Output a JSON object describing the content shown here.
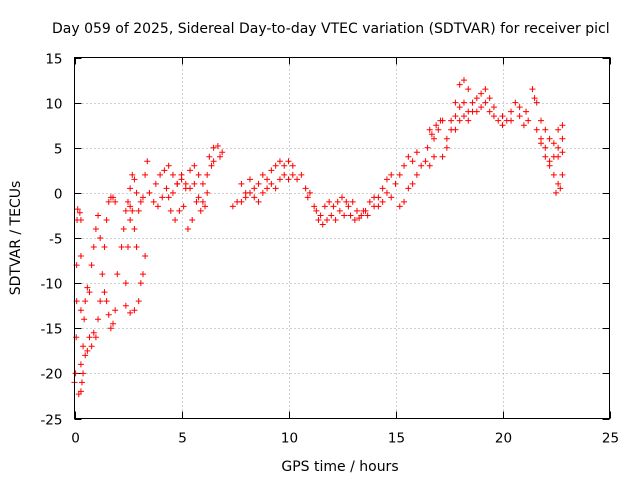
{
  "chart_data": {
    "type": "scatter",
    "title": "Day 059 of 2025, Sidereal Day-to-day VTEC variation (SDTVAR) for receiver picl",
    "xlabel": "GPS time / hours",
    "ylabel": "SDTVAR / TECUs",
    "xlim": [
      0,
      25
    ],
    "ylim": [
      -25,
      15
    ],
    "xticks": [
      0,
      5,
      10,
      15,
      20,
      25
    ],
    "yticks": [
      -25,
      -20,
      -15,
      -10,
      -5,
      0,
      5,
      10,
      15
    ],
    "xtick_labels": [
      "0",
      "5",
      "10",
      "15",
      "20",
      "25"
    ],
    "ytick_labels": [
      "-25",
      "-20",
      "-15",
      "-10",
      "-5",
      "0",
      "5",
      "10",
      "15"
    ],
    "grid": true,
    "legend": false,
    "marker": "plus",
    "color": "#ff0000",
    "series": [
      {
        "name": "SDTVAR",
        "points": [
          [
            0.0,
            -21.0
          ],
          [
            0.05,
            -20.0
          ],
          [
            0.08,
            -16.0
          ],
          [
            0.1,
            -12.0
          ],
          [
            0.1,
            -8.0
          ],
          [
            0.12,
            -3.0
          ],
          [
            0.15,
            -1.8
          ],
          [
            0.25,
            -2.2
          ],
          [
            0.3,
            -3.0
          ],
          [
            0.3,
            -7.0
          ],
          [
            0.3,
            -13.0
          ],
          [
            0.3,
            -19.0
          ],
          [
            0.3,
            -22.0
          ],
          [
            0.2,
            -22.3
          ],
          [
            0.35,
            -21.0
          ],
          [
            0.4,
            -17.0
          ],
          [
            0.45,
            -14.0
          ],
          [
            0.5,
            -12.0
          ],
          [
            0.6,
            -10.5
          ],
          [
            0.7,
            -11.0
          ],
          [
            0.8,
            -8.0
          ],
          [
            0.9,
            -6.0
          ],
          [
            1.0,
            -4.0
          ],
          [
            1.1,
            -2.5
          ],
          [
            1.2,
            -5.0
          ],
          [
            0.4,
            -20.0
          ],
          [
            0.5,
            -18.0
          ],
          [
            0.6,
            -17.5
          ],
          [
            0.7,
            -16.0
          ],
          [
            0.8,
            -17.0
          ],
          [
            0.9,
            -15.5
          ],
          [
            1.0,
            -16.0
          ],
          [
            1.1,
            -14.0
          ],
          [
            1.2,
            -12.0
          ],
          [
            1.3,
            -9.0
          ],
          [
            1.4,
            -6.0
          ],
          [
            1.5,
            -3.0
          ],
          [
            1.6,
            -1.0
          ],
          [
            1.7,
            -0.5
          ],
          [
            1.8,
            -0.5
          ],
          [
            1.9,
            -1.0
          ],
          [
            1.4,
            -11.0
          ],
          [
            1.5,
            -12.0
          ],
          [
            1.6,
            -13.5
          ],
          [
            1.7,
            -15.0
          ],
          [
            1.8,
            -14.5
          ],
          [
            1.9,
            -13.0
          ],
          [
            2.0,
            -9.0
          ],
          [
            2.4,
            -10.0
          ],
          [
            2.5,
            -6.0
          ],
          [
            2.6,
            -3.0
          ],
          [
            2.6,
            -1.5
          ],
          [
            2.7,
            -2.0
          ],
          [
            2.8,
            -4.0
          ],
          [
            2.9,
            -6.0
          ],
          [
            2.4,
            -12.5
          ],
          [
            2.6,
            -13.3
          ],
          [
            2.8,
            -13.0
          ],
          [
            3.0,
            -12.0
          ],
          [
            3.1,
            -10.0
          ],
          [
            3.2,
            -9.0
          ],
          [
            3.3,
            -7.0
          ],
          [
            2.2,
            -6.0
          ],
          [
            2.3,
            -4.0
          ],
          [
            2.4,
            -2.0
          ],
          [
            2.5,
            -1.0
          ],
          [
            2.6,
            0.5
          ],
          [
            2.7,
            2.0
          ],
          [
            2.8,
            1.5
          ],
          [
            2.9,
            0.0
          ],
          [
            3.0,
            -2.0
          ],
          [
            3.1,
            -1.0
          ],
          [
            3.2,
            -0.5
          ],
          [
            3.3,
            2.0
          ],
          [
            3.4,
            3.5
          ],
          [
            3.5,
            0.0
          ],
          [
            3.7,
            -1.0
          ],
          [
            3.9,
            -1.5
          ],
          [
            4.1,
            -0.5
          ],
          [
            4.3,
            0.5
          ],
          [
            4.5,
            -2.0
          ],
          [
            4.7,
            -3.0
          ],
          [
            4.9,
            -2.0
          ],
          [
            5.1,
            -1.5
          ],
          [
            5.3,
            -4.0
          ],
          [
            5.5,
            -3.0
          ],
          [
            5.7,
            -1.0
          ],
          [
            5.9,
            -2.0
          ],
          [
            6.1,
            -1.5
          ],
          [
            3.8,
            1.0
          ],
          [
            4.0,
            2.0
          ],
          [
            4.2,
            2.5
          ],
          [
            4.4,
            3.0
          ],
          [
            4.6,
            2.0
          ],
          [
            4.8,
            1.0
          ],
          [
            5.0,
            1.5
          ],
          [
            5.2,
            0.5
          ],
          [
            5.4,
            2.5
          ],
          [
            5.6,
            3.0
          ],
          [
            5.8,
            2.0
          ],
          [
            6.0,
            1.0
          ],
          [
            6.2,
            2.0
          ],
          [
            6.4,
            3.0
          ],
          [
            4.4,
            -0.5
          ],
          [
            4.6,
            0.0
          ],
          [
            4.8,
            1.0
          ],
          [
            5.0,
            2.0
          ],
          [
            5.2,
            1.0
          ],
          [
            5.4,
            0.5
          ],
          [
            5.6,
            1.0
          ],
          [
            5.8,
            -0.5
          ],
          [
            6.0,
            -1.0
          ],
          [
            6.2,
            0.0
          ],
          [
            6.3,
            4.0
          ],
          [
            6.5,
            5.0
          ],
          [
            6.7,
            5.2
          ],
          [
            6.9,
            4.5
          ],
          [
            6.5,
            3.5
          ],
          [
            6.8,
            4.0
          ],
          [
            7.4,
            -1.5
          ],
          [
            7.6,
            -1.0
          ],
          [
            7.8,
            1.0
          ],
          [
            8.0,
            0.0
          ],
          [
            8.2,
            1.5
          ],
          [
            8.4,
            0.5
          ],
          [
            8.6,
            1.0
          ],
          [
            8.8,
            2.0
          ],
          [
            9.0,
            1.5
          ],
          [
            9.2,
            2.5
          ],
          [
            9.4,
            3.0
          ],
          [
            9.6,
            3.5
          ],
          [
            9.8,
            3.0
          ],
          [
            10.0,
            3.5
          ],
          [
            10.2,
            3.0
          ],
          [
            7.8,
            -1.0
          ],
          [
            8.0,
            -0.5
          ],
          [
            8.2,
            0.0
          ],
          [
            8.4,
            -0.5
          ],
          [
            8.6,
            -1.0
          ],
          [
            8.8,
            0.0
          ],
          [
            9.0,
            0.5
          ],
          [
            9.2,
            1.0
          ],
          [
            9.4,
            0.5
          ],
          [
            9.6,
            1.5
          ],
          [
            9.8,
            2.0
          ],
          [
            10.0,
            1.5
          ],
          [
            10.2,
            2.0
          ],
          [
            10.4,
            1.5
          ],
          [
            10.6,
            2.0
          ],
          [
            10.8,
            0.5
          ],
          [
            10.9,
            -0.5
          ],
          [
            11.0,
            0.0
          ],
          [
            11.2,
            -1.5
          ],
          [
            11.4,
            -3.0
          ],
          [
            11.6,
            -3.5
          ],
          [
            11.8,
            -3.0
          ],
          [
            12.0,
            -2.5
          ],
          [
            12.2,
            -3.0
          ],
          [
            12.4,
            -2.0
          ],
          [
            12.6,
            -2.5
          ],
          [
            12.8,
            -1.5
          ],
          [
            13.0,
            -1.0
          ],
          [
            13.2,
            -2.0
          ],
          [
            13.4,
            -2.5
          ],
          [
            13.6,
            -2.0
          ],
          [
            11.3,
            -2.0
          ],
          [
            11.5,
            -2.5
          ],
          [
            11.7,
            -1.5
          ],
          [
            11.9,
            -1.0
          ],
          [
            12.1,
            -1.5
          ],
          [
            12.3,
            -1.0
          ],
          [
            12.5,
            -0.5
          ],
          [
            12.7,
            -1.0
          ],
          [
            12.9,
            -2.5
          ],
          [
            13.1,
            -3.0
          ],
          [
            13.3,
            -2.8
          ],
          [
            13.5,
            -2.0
          ],
          [
            13.7,
            -2.5
          ],
          [
            13.8,
            -1.0
          ],
          [
            14.0,
            -0.5
          ],
          [
            14.2,
            -1.5
          ],
          [
            14.4,
            -1.0
          ],
          [
            14.6,
            0.0
          ],
          [
            14.8,
            -0.5
          ],
          [
            14.0,
            -1.5
          ],
          [
            14.2,
            -0.5
          ],
          [
            14.4,
            0.5
          ],
          [
            14.6,
            1.5
          ],
          [
            14.8,
            2.0
          ],
          [
            15.0,
            1.0
          ],
          [
            15.2,
            2.0
          ],
          [
            15.4,
            3.0
          ],
          [
            15.6,
            4.0
          ],
          [
            15.8,
            3.5
          ],
          [
            16.0,
            4.5
          ],
          [
            15.2,
            -1.5
          ],
          [
            15.4,
            -1.0
          ],
          [
            15.6,
            0.5
          ],
          [
            15.8,
            1.0
          ],
          [
            16.0,
            2.0
          ],
          [
            16.2,
            3.0
          ],
          [
            16.4,
            3.5
          ],
          [
            16.6,
            3.0
          ],
          [
            16.8,
            4.0
          ],
          [
            16.5,
            5.0
          ],
          [
            16.7,
            6.5
          ],
          [
            16.9,
            7.5
          ],
          [
            17.1,
            8.0
          ],
          [
            16.6,
            7.0
          ],
          [
            16.8,
            6.0
          ],
          [
            17.0,
            7.0
          ],
          [
            17.2,
            8.0
          ],
          [
            17.2,
            4.0
          ],
          [
            17.4,
            6.0
          ],
          [
            17.6,
            8.0
          ],
          [
            17.8,
            10.0
          ],
          [
            18.0,
            12.0
          ],
          [
            18.2,
            12.5
          ],
          [
            18.4,
            11.5
          ],
          [
            17.4,
            5.0
          ],
          [
            17.6,
            7.0
          ],
          [
            17.8,
            8.5
          ],
          [
            18.0,
            9.5
          ],
          [
            18.2,
            10.0
          ],
          [
            18.4,
            9.0
          ],
          [
            18.6,
            10.0
          ],
          [
            18.8,
            10.5
          ],
          [
            19.0,
            11.0
          ],
          [
            19.2,
            11.5
          ],
          [
            19.4,
            10.5
          ],
          [
            19.6,
            9.5
          ],
          [
            17.8,
            7.0
          ],
          [
            18.0,
            8.0
          ],
          [
            18.2,
            8.5
          ],
          [
            18.4,
            8.0
          ],
          [
            18.6,
            9.0
          ],
          [
            18.8,
            9.0
          ],
          [
            19.0,
            9.5
          ],
          [
            19.2,
            10.0
          ],
          [
            19.4,
            9.0
          ],
          [
            19.6,
            8.5
          ],
          [
            19.8,
            8.0
          ],
          [
            20.0,
            7.5
          ],
          [
            20.2,
            8.0
          ],
          [
            20.4,
            9.0
          ],
          [
            20.6,
            10.0
          ],
          [
            20.8,
            8.5
          ],
          [
            21.0,
            7.5
          ],
          [
            21.2,
            8.0
          ],
          [
            21.4,
            11.5
          ],
          [
            21.5,
            10.5
          ],
          [
            20.0,
            8.5
          ],
          [
            20.4,
            8.0
          ],
          [
            20.8,
            9.5
          ],
          [
            21.1,
            9.0
          ],
          [
            21.6,
            10.0
          ],
          [
            21.8,
            8.0
          ],
          [
            22.0,
            5.0
          ],
          [
            22.2,
            3.0
          ],
          [
            22.4,
            2.0
          ],
          [
            22.6,
            1.0
          ],
          [
            22.8,
            2.0
          ],
          [
            21.6,
            7.0
          ],
          [
            21.8,
            6.0
          ],
          [
            22.0,
            4.0
          ],
          [
            22.2,
            3.5
          ],
          [
            22.4,
            4.0
          ],
          [
            22.6,
            5.0
          ],
          [
            22.8,
            6.0
          ],
          [
            21.8,
            5.5
          ],
          [
            22.0,
            7.0
          ],
          [
            22.2,
            6.0
          ],
          [
            22.4,
            5.5
          ],
          [
            22.6,
            4.0
          ],
          [
            22.8,
            4.5
          ],
          [
            22.6,
            7.0
          ],
          [
            22.8,
            7.5
          ],
          [
            22.7,
            0.5
          ],
          [
            22.5,
            0.0
          ]
        ]
      }
    ]
  }
}
